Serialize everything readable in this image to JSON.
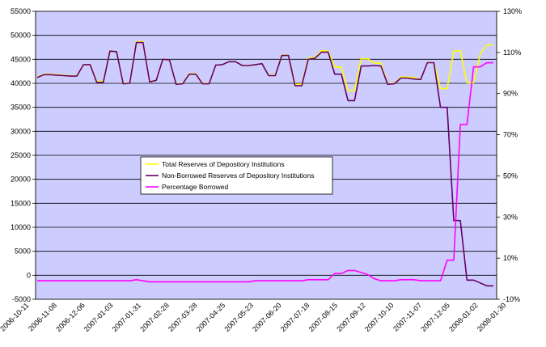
{
  "chart_data": {
    "type": "line",
    "title": "",
    "xlabel": "",
    "ylabel": "",
    "y_range": [
      -5000,
      55000
    ],
    "y2_range": [
      -0.1,
      1.3
    ],
    "y_ticks": [
      -5000,
      0,
      5000,
      10000,
      15000,
      20000,
      25000,
      30000,
      35000,
      40000,
      45000,
      50000,
      55000
    ],
    "y_tick_labels": [
      "-5000",
      "0",
      "5000",
      "10000",
      "15000",
      "20000",
      "25000",
      "30000",
      "35000",
      "40000",
      "45000",
      "50000",
      "55000"
    ],
    "y2_ticks": [
      -0.1,
      0.1,
      0.3,
      0.5,
      0.7,
      0.9,
      1.1,
      1.3
    ],
    "y2_tick_labels": [
      "-10%",
      "10%",
      "30%",
      "50%",
      "70%",
      "90%",
      "110%",
      "130%"
    ],
    "x_tick_labels": [
      "2006-10-11",
      "2006-11-08",
      "2006-12-06",
      "2007-01-03",
      "2007-01-31",
      "2007-02-28",
      "2007-03-28",
      "2007-04-25",
      "2007-05-23",
      "2007-06-20",
      "2007-07-18",
      "2007-08-15",
      "2007-09-12",
      "2007-10-10",
      "2007-11-07",
      "2007-12-05",
      "2008-01-02",
      "2008-01-30"
    ],
    "grid": "horizontal",
    "plot_background": "#ccccff",
    "legend_position": "center-left",
    "series": [
      {
        "name": "Total Reserves of Depository Institutions",
        "axis": "left",
        "color": "#ffff00",
        "values": [
          41300,
          41900,
          41900,
          41800,
          41700,
          41600,
          41600,
          43900,
          43900,
          40400,
          40400,
          46800,
          46600,
          40000,
          40100,
          48700,
          48700,
          40400,
          40600,
          45000,
          44900,
          39900,
          40000,
          42000,
          42000,
          40000,
          40000,
          43800,
          43900,
          44500,
          44500,
          43700,
          43700,
          43900,
          44100,
          41700,
          41700,
          45900,
          45900,
          39800,
          39800,
          45300,
          45400,
          46800,
          46700,
          43400,
          43400,
          38500,
          38500,
          45100,
          45100,
          44200,
          44200,
          39900,
          40000,
          41300,
          41300,
          41200,
          40800,
          44300,
          44300,
          38900,
          38900,
          46700,
          46800,
          40100,
          40100,
          46100,
          48000,
          48000
        ]
      },
      {
        "name": "Non-Borrowed Reserves of Depository Institutions",
        "axis": "left",
        "color": "#660066",
        "values": [
          41200,
          41800,
          41800,
          41700,
          41600,
          41500,
          41500,
          43900,
          43900,
          40200,
          40200,
          46700,
          46600,
          39900,
          40000,
          48500,
          48500,
          40300,
          40600,
          45000,
          44900,
          39800,
          39900,
          41900,
          41900,
          39900,
          39900,
          43800,
          43900,
          44500,
          44500,
          43700,
          43700,
          43900,
          44100,
          41600,
          41600,
          45800,
          45800,
          39500,
          39500,
          45000,
          45200,
          46500,
          46500,
          41900,
          41900,
          36400,
          36400,
          43600,
          43600,
          43700,
          43600,
          39800,
          39900,
          41100,
          41100,
          40900,
          40800,
          44300,
          44300,
          35000,
          35000,
          11400,
          11400,
          -1000,
          -1000,
          -1600,
          -2200,
          -2200
        ]
      },
      {
        "name": "Percentage Borrowed",
        "axis": "right",
        "color": "#ff00ff",
        "values": [
          -0.01,
          -0.01,
          -0.01,
          -0.01,
          -0.01,
          -0.01,
          -0.01,
          -0.01,
          -0.01,
          -0.01,
          -0.01,
          -0.01,
          -0.01,
          -0.01,
          -0.01,
          -0.005,
          -0.01,
          -0.015,
          -0.015,
          -0.015,
          -0.015,
          -0.015,
          -0.015,
          -0.015,
          -0.015,
          -0.015,
          -0.015,
          -0.015,
          -0.015,
          -0.015,
          -0.015,
          -0.015,
          -0.015,
          -0.01,
          -0.01,
          -0.01,
          -0.01,
          -0.01,
          -0.01,
          -0.01,
          -0.01,
          -0.005,
          -0.005,
          -0.005,
          -0.005,
          0.025,
          0.025,
          0.04,
          0.04,
          0.03,
          0.02,
          0.0,
          -0.01,
          -0.01,
          -0.01,
          -0.005,
          -0.005,
          -0.005,
          -0.01,
          -0.01,
          -0.01,
          -0.01,
          0.09,
          0.09,
          0.75,
          0.75,
          1.03,
          1.03,
          1.05,
          1.05
        ]
      }
    ]
  }
}
